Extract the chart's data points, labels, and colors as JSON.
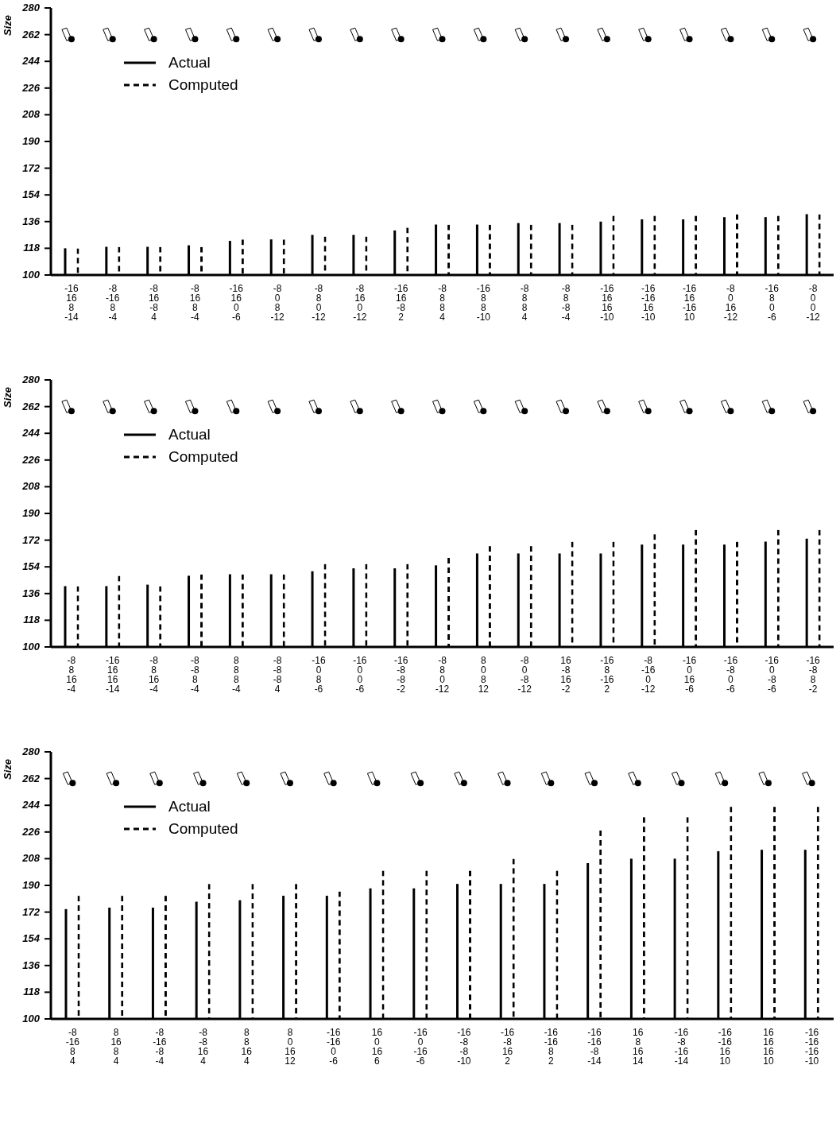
{
  "chart_data": [
    {
      "type": "bar",
      "ylabel": "Size",
      "ylim": [
        100,
        280
      ],
      "yticks": [
        100,
        118,
        136,
        154,
        172,
        190,
        208,
        226,
        244,
        262,
        280
      ],
      "legend": "top left",
      "categories": [
        "-16\n16\n8\n-14",
        "-8\n-16\n8\n-4",
        "-8\n16\n-8\n4",
        "-8\n16\n8\n-4",
        "-16\n16\n0\n-6",
        "-8\n0\n8\n-12",
        "-8\n8\n0\n-12",
        "-8\n16\n0\n-12",
        "-16\n16\n-8\n2",
        "-8\n8\n8\n4",
        "-16\n8\n8\n-10",
        "-8\n8\n8\n4",
        "-8\n8\n-8\n-4",
        "-16\n16\n16\n-10",
        "-16\n-16\n16\n-10",
        "-16\n16\n-16\n10",
        "-8\n0\n16\n-12",
        "-16\n8\n0\n-6",
        "-8\n0\n0\n-12"
      ],
      "series": [
        {
          "name": "Actual",
          "color": "#000000",
          "line_style": "solid",
          "values": [
            118,
            119,
            119,
            120,
            123,
            124,
            127,
            127,
            130,
            134,
            134,
            135,
            135,
            136,
            137.5,
            137.5,
            139,
            139,
            141
          ]
        },
        {
          "name": "Computed",
          "color": "#000000",
          "line_style": "dashed",
          "values": [
            118,
            119,
            119,
            119,
            124,
            124,
            126,
            126,
            132,
            134,
            134,
            134,
            134,
            140,
            140,
            140,
            141,
            140,
            141
          ]
        }
      ]
    },
    {
      "type": "bar",
      "ylabel": "Size",
      "ylim": [
        100,
        280
      ],
      "yticks": [
        100,
        118,
        136,
        154,
        172,
        190,
        208,
        226,
        244,
        262,
        280
      ],
      "legend": "top left",
      "categories": [
        "-8\n8\n16\n-4",
        "-16\n16\n16\n-14",
        "-8\n8\n16\n-4",
        "-8\n-8\n8\n-4",
        "8\n8\n8\n-4",
        "-8\n-8\n-8\n4",
        "-16\n0\n8\n-6",
        "-16\n0\n0\n-6",
        "-16\n-8\n-8\n-2",
        "-8\n8\n0\n-12",
        "8\n0\n8\n12",
        "-8\n0\n-8\n-12",
        "16\n-8\n16\n-2",
        "-16\n8\n-16\n2",
        "-8\n-16\n0\n-12",
        "-16\n0\n16\n-6",
        "-16\n-8\n0\n-6",
        "-16\n0\n-8\n-6",
        "-16\n-8\n8\n-2"
      ],
      "series": [
        {
          "name": "Actual",
          "color": "#000000",
          "line_style": "solid",
          "values": [
            141,
            141,
            142,
            148,
            149,
            149,
            151,
            153,
            153,
            155,
            163,
            163,
            163,
            163,
            169,
            169,
            169,
            171,
            173
          ]
        },
        {
          "name": "Computed",
          "color": "#000000",
          "line_style": "dashed",
          "values": [
            141,
            148,
            141,
            149,
            149,
            149,
            156,
            156,
            156,
            160,
            168,
            168,
            171,
            171,
            176,
            179,
            171,
            179,
            179
          ]
        }
      ]
    },
    {
      "type": "bar",
      "ylabel": "Size",
      "ylim": [
        100,
        280
      ],
      "yticks": [
        100,
        118,
        136,
        154,
        172,
        190,
        208,
        226,
        244,
        262,
        280
      ],
      "legend": "top left",
      "categories": [
        "-8\n-16\n8\n4",
        "8\n16\n8\n4",
        "-8\n-16\n-8\n-4",
        "-8\n-8\n16\n4",
        "8\n8\n16\n4",
        "8\n0\n16\n12",
        "-16\n-16\n0\n-6",
        "16\n0\n16\n6",
        "-16\n0\n-16\n-6",
        "-16\n-8\n-8\n-10",
        "-16\n-8\n16\n2",
        "-16\n-16\n8\n2",
        "-16\n-16\n-8\n-14",
        "16\n8\n16\n14",
        "-16\n-8\n-16\n-14",
        "-16\n-16\n16\n10",
        "16\n16\n16\n10",
        "-16\n-16\n-16\n-10"
      ],
      "series": [
        {
          "name": "Actual",
          "color": "#000000",
          "line_style": "solid",
          "values": [
            174,
            175,
            175,
            179,
            180,
            183,
            183,
            188,
            188,
            191,
            191,
            191,
            205,
            208,
            208,
            213,
            214,
            214
          ]
        },
        {
          "name": "Computed",
          "color": "#000000",
          "line_style": "dashed",
          "values": [
            183,
            183,
            183,
            191,
            191,
            191,
            186,
            200,
            200,
            200,
            208,
            200,
            227,
            236,
            236,
            243,
            243,
            243
          ]
        }
      ]
    }
  ]
}
